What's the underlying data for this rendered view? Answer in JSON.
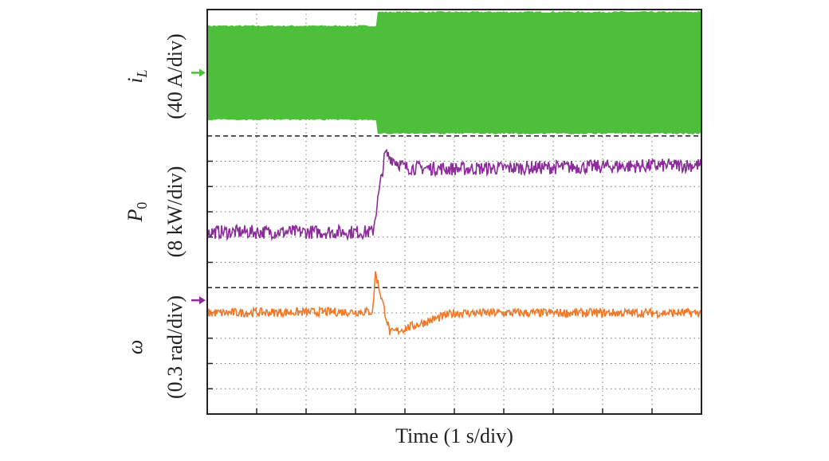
{
  "chart_data": {
    "type": "line",
    "x_label": "Time (1 s/div)",
    "x_divisions": 10,
    "y_divisions": 16,
    "grid": true,
    "series": [
      {
        "name": "i_L",
        "label_symbol": "i",
        "label_subscript": "L",
        "label_scale": "(40 A/div)",
        "color": "#4dbf3a",
        "kind": "envelope",
        "events": [
          {
            "t_start": 0.0,
            "t_end": 3.4,
            "upper": 1.85,
            "lower": -1.85
          },
          {
            "t_start": 3.45,
            "t_end": 10.0,
            "upper": 2.4,
            "lower": -2.4
          }
        ],
        "marker_color": "#4dbf3a"
      },
      {
        "name": "P_0",
        "label_symbol": "P",
        "label_subscript": "0",
        "label_scale": "(8 kW/div)",
        "color": "#8c2d9b",
        "kind": "step",
        "events": [
          {
            "t": 0.0,
            "value": 0.2
          },
          {
            "t": 3.35,
            "value": 0.2
          },
          {
            "t": 3.6,
            "value": 3.3
          },
          {
            "t": 4.0,
            "value": 2.75
          },
          {
            "t": 5.0,
            "value": 2.7
          },
          {
            "t": 10.0,
            "value": 2.85
          }
        ],
        "marker_color": "#8c2d9b"
      },
      {
        "name": "omega",
        "label_symbol": "ω",
        "label_subscript": "",
        "label_scale": "(0.3 rad/div)",
        "color": "#f07a2a",
        "kind": "transient",
        "events": [
          {
            "t": 0.0,
            "value": 0.0
          },
          {
            "t": 3.35,
            "value": 0.05
          },
          {
            "t": 3.4,
            "value": 1.6
          },
          {
            "t": 3.7,
            "value": -0.8
          },
          {
            "t": 5.0,
            "value": 0.0
          },
          {
            "t": 10.0,
            "value": 0.0
          }
        ]
      }
    ]
  }
}
